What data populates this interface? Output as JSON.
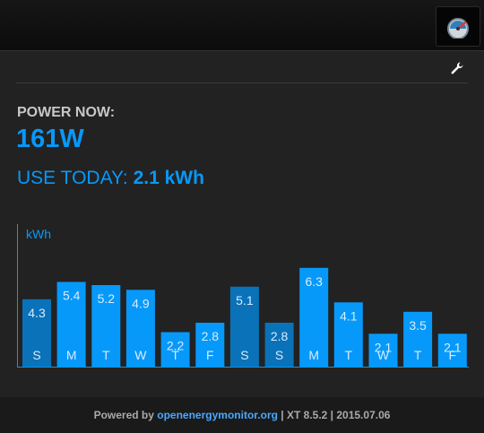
{
  "header": {
    "app_icon": "gauge-icon"
  },
  "settings": {
    "icon": "wrench-icon"
  },
  "power": {
    "label": "POWER NOW:",
    "value": "161W"
  },
  "today": {
    "label": "USE TODAY:",
    "value": "2.1 kWh"
  },
  "colors": {
    "accent": "#0699fa",
    "bar_highlight": "#0a72b8",
    "background": "#222222"
  },
  "chart_data": {
    "type": "bar",
    "ylabel": "kWh",
    "categories": [
      "S",
      "M",
      "T",
      "W",
      "T",
      "F",
      "S",
      "S",
      "M",
      "T",
      "W",
      "T",
      "F"
    ],
    "values": [
      4.3,
      5.4,
      5.2,
      4.9,
      2.2,
      2.8,
      5.1,
      2.8,
      6.3,
      4.1,
      2.1,
      3.5,
      2.1
    ],
    "value_labels": [
      "4.3",
      "5.4",
      "5.2",
      "4.9",
      "2.2",
      "2.8",
      "5.1",
      "2.8",
      "6.3",
      "4.1",
      "2.1",
      "3.5",
      "2.1"
    ],
    "highlighted": [
      0,
      6,
      7
    ],
    "ylim": [
      0,
      7
    ]
  },
  "footer": {
    "prefix": "Powered by ",
    "link": "openenergymonitor.org",
    "suffix": " | XT 8.5.2 | 2015.07.06"
  }
}
